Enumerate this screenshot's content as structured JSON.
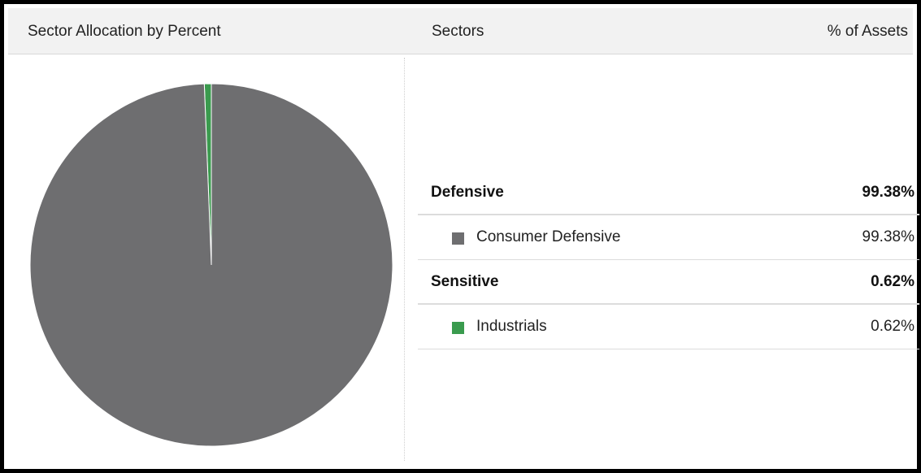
{
  "header": {
    "title": "Sector Allocation by Percent",
    "sectors_label": "Sectors",
    "assets_label": "% of Assets"
  },
  "colors": {
    "consumer_defensive": "#6e6e70",
    "industrials": "#3a9b4e"
  },
  "table": {
    "rows": [
      {
        "kind": "group",
        "label": "Defensive",
        "value": "99.38%"
      },
      {
        "kind": "item",
        "label": "Consumer Defensive",
        "value": "99.38%",
        "color": "#6e6e70"
      },
      {
        "kind": "group",
        "label": "Sensitive",
        "value": "0.62%"
      },
      {
        "kind": "item",
        "label": "Industrials",
        "value": "0.62%",
        "color": "#3a9b4e"
      }
    ]
  },
  "chart_data": {
    "type": "pie",
    "title": "Sector Allocation by Percent",
    "slices": [
      {
        "label": "Consumer Defensive",
        "value": 99.38,
        "color": "#6e6e70"
      },
      {
        "label": "Industrials",
        "value": 0.62,
        "color": "#3a9b4e"
      }
    ]
  }
}
